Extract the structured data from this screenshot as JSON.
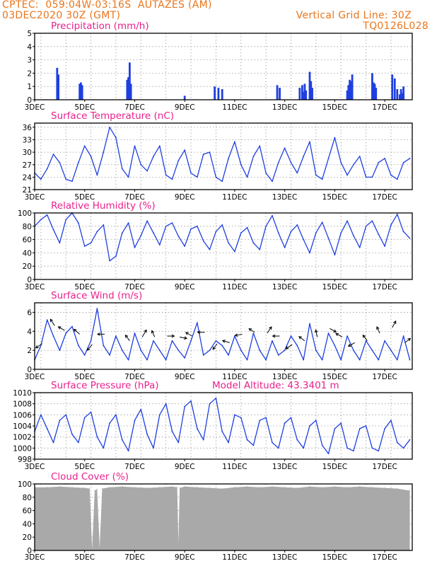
{
  "header": {
    "line1": "CPTEC:  059:04W-03:16S  AUTAZES (AM)",
    "line2": "03DEC2020 30Z (GMT)",
    "grid_note": "Vertical Grid Line: 30Z",
    "code": "TQ0126L028"
  },
  "colors": {
    "header": "#e8761e",
    "title": "#e8218c",
    "series": "#1f3fe0",
    "cloud": "#a9a9a9",
    "grid": "#9a9a9a"
  },
  "x_axis": {
    "ticks": [
      {
        "day": 3,
        "label": "3DEC"
      },
      {
        "day": 5,
        "label": "5DEC"
      },
      {
        "day": 7,
        "label": "7DEC"
      },
      {
        "day": 9,
        "label": "9DEC"
      },
      {
        "day": 11,
        "label": "11DEC"
      },
      {
        "day": 13,
        "label": "13DEC"
      },
      {
        "day": 15,
        "label": "15DEC"
      },
      {
        "day": 17,
        "label": "17DEC"
      }
    ],
    "range": [
      3,
      18.1
    ],
    "grid_lines_day": [
      3.25,
      4.25,
      5.25,
      6.25,
      7.25,
      8.25,
      9.25,
      10.25,
      11.25,
      12.25,
      13.25,
      14.25,
      15.25,
      16.25,
      17.25
    ]
  },
  "chart_data": [
    {
      "type": "bar",
      "title": "Precipitation (mm/h)",
      "ylim": [
        0,
        5
      ],
      "yticks": [
        0,
        1,
        2,
        3,
        4,
        5
      ],
      "x": [
        3.9,
        3.95,
        4.8,
        4.85,
        4.9,
        6.7,
        6.75,
        6.8,
        6.85,
        9.0,
        10.2,
        10.35,
        10.5,
        12.7,
        12.8,
        13.6,
        13.7,
        13.75,
        13.8,
        13.85,
        14.0,
        14.05,
        14.1,
        15.5,
        15.55,
        15.6,
        15.65,
        15.7,
        16.5,
        16.55,
        16.6,
        16.65,
        17.3,
        17.4,
        17.5,
        17.6,
        17.65,
        17.7,
        17.75
      ],
      "values": [
        2.4,
        1.9,
        1.2,
        1.3,
        1.1,
        1.5,
        1.7,
        2.8,
        1.2,
        0.3,
        1.0,
        0.9,
        0.8,
        1.1,
        0.9,
        0.9,
        1.1,
        0.6,
        1.2,
        0.7,
        2.1,
        1.4,
        0.9,
        0.7,
        1.1,
        1.5,
        1.4,
        1.9,
        2.0,
        1.3,
        1.2,
        0.9,
        1.9,
        1.6,
        0.8,
        0.4,
        0.8,
        0.5,
        1.0
      ]
    },
    {
      "type": "line",
      "title": "Surface Temperature (nC)",
      "ylim": [
        21,
        37
      ],
      "yticks": [
        21,
        24,
        27,
        30,
        33,
        36
      ],
      "x": [
        3,
        3.25,
        3.5,
        3.75,
        4,
        4.25,
        4.5,
        4.75,
        5,
        5.25,
        5.5,
        5.75,
        6,
        6.25,
        6.5,
        6.75,
        7,
        7.25,
        7.5,
        7.75,
        8,
        8.25,
        8.5,
        8.75,
        9,
        9.25,
        9.5,
        9.75,
        10,
        10.25,
        10.5,
        10.75,
        11,
        11.25,
        11.5,
        11.75,
        12,
        12.25,
        12.5,
        12.75,
        13,
        13.25,
        13.5,
        13.75,
        14,
        14.25,
        14.5,
        14.75,
        15,
        15.25,
        15.5,
        15.75,
        16,
        16.25,
        16.5,
        16.75,
        17,
        17.25,
        17.5,
        17.75,
        18
      ],
      "values": [
        25,
        23.5,
        26,
        29.5,
        27.5,
        23.5,
        23,
        27.5,
        31.5,
        29,
        24.5,
        30,
        36,
        33.5,
        26,
        24,
        31.5,
        27,
        25.5,
        29,
        31.5,
        24.5,
        23.5,
        28,
        30.5,
        25,
        24,
        29.5,
        30,
        24,
        23,
        28.5,
        32.5,
        27,
        24,
        29,
        31.5,
        25,
        23,
        27.5,
        31,
        27.5,
        25,
        29,
        32.5,
        24.5,
        23.5,
        28.5,
        33.5,
        27.5,
        24.5,
        27,
        29,
        24,
        24,
        27.5,
        28.5,
        24.5,
        23.5,
        27.5,
        28.5
      ]
    },
    {
      "type": "line",
      "title": "Relative Humidity (%)",
      "ylim": [
        0,
        100
      ],
      "yticks": [
        0,
        20,
        40,
        60,
        80,
        100
      ],
      "x": [
        3,
        3.25,
        3.5,
        3.75,
        4,
        4.25,
        4.5,
        4.75,
        5,
        5.25,
        5.5,
        5.75,
        6,
        6.25,
        6.5,
        6.75,
        7,
        7.25,
        7.5,
        7.75,
        8,
        8.25,
        8.5,
        8.75,
        9,
        9.25,
        9.5,
        9.75,
        10,
        10.25,
        10.5,
        10.75,
        11,
        11.25,
        11.5,
        11.75,
        12,
        12.25,
        12.5,
        12.75,
        13,
        13.25,
        13.5,
        13.75,
        14,
        14.25,
        14.5,
        14.75,
        15,
        15.25,
        15.5,
        15.75,
        16,
        16.25,
        16.5,
        16.75,
        17,
        17.25,
        17.5,
        17.75,
        18
      ],
      "values": [
        80,
        90,
        97,
        75,
        55,
        90,
        100,
        85,
        50,
        55,
        72,
        82,
        28,
        35,
        70,
        85,
        48,
        66,
        88,
        70,
        52,
        80,
        85,
        65,
        50,
        76,
        80,
        58,
        45,
        72,
        82,
        55,
        42,
        70,
        78,
        55,
        45,
        80,
        96,
        70,
        48,
        72,
        82,
        60,
        40,
        70,
        86,
        62,
        37,
        70,
        88,
        66,
        48,
        80,
        88,
        68,
        50,
        82,
        98,
        72,
        62
      ]
    },
    {
      "type": "line",
      "title": "Surface Wind (m/s)",
      "ylim": [
        0,
        7
      ],
      "yticks": [
        0,
        2,
        4,
        6
      ],
      "x": [
        3,
        3.25,
        3.5,
        3.75,
        4,
        4.25,
        4.5,
        4.75,
        5,
        5.25,
        5.5,
        5.75,
        6,
        6.25,
        6.5,
        6.75,
        7,
        7.25,
        7.5,
        7.75,
        8,
        8.25,
        8.5,
        8.75,
        9,
        9.25,
        9.5,
        9.75,
        10,
        10.25,
        10.5,
        10.75,
        11,
        11.25,
        11.5,
        11.75,
        12,
        12.25,
        12.5,
        12.75,
        13,
        13.25,
        13.5,
        13.75,
        14,
        14.25,
        14.5,
        14.75,
        15,
        15.25,
        15.5,
        15.75,
        16,
        16.25,
        16.5,
        16.75,
        17,
        17.25,
        17.5,
        17.75,
        18
      ],
      "values": [
        1,
        2.5,
        5.2,
        3.5,
        2,
        3.8,
        4.5,
        2.5,
        1.5,
        3,
        6.4,
        2.5,
        1.5,
        3.5,
        2,
        1,
        3.8,
        2,
        1,
        3,
        2,
        1,
        3,
        2,
        1.2,
        3,
        4.9,
        1.5,
        2,
        3,
        2.5,
        1.5,
        3.5,
        2,
        1,
        3.8,
        2,
        1,
        3,
        1.5,
        2,
        3.5,
        2.5,
        1,
        4.8,
        2,
        1,
        3.8,
        2.5,
        1,
        3.5,
        2,
        1,
        3,
        2,
        1,
        3,
        2,
        1,
        3.5,
        1
      ]
    },
    {
      "type": "line",
      "title": "Surface Pressure (hPa)",
      "annotation": "Model Altitude: 43.3401 m",
      "ylim": [
        998,
        1010
      ],
      "yticks": [
        998,
        1000,
        1002,
        1004,
        1006,
        1008,
        1010
      ],
      "x": [
        3,
        3.25,
        3.5,
        3.75,
        4,
        4.25,
        4.5,
        4.75,
        5,
        5.25,
        5.5,
        5.75,
        6,
        6.25,
        6.5,
        6.75,
        7,
        7.25,
        7.5,
        7.75,
        8,
        8.25,
        8.5,
        8.75,
        9,
        9.25,
        9.5,
        9.75,
        10,
        10.25,
        10.5,
        10.75,
        11,
        11.25,
        11.5,
        11.75,
        12,
        12.25,
        12.5,
        12.75,
        13,
        13.25,
        13.5,
        13.75,
        14,
        14.25,
        14.5,
        14.75,
        15,
        15.25,
        15.5,
        15.75,
        16,
        16.25,
        16.5,
        16.75,
        17,
        17.25,
        17.5,
        17.75,
        18
      ],
      "values": [
        1003,
        1006,
        1003.5,
        1001,
        1005,
        1006,
        1002.5,
        1001,
        1005.5,
        1006.5,
        1002,
        1000,
        1004.5,
        1006,
        1001.5,
        999.5,
        1005,
        1007,
        1002.5,
        1000,
        1006,
        1008,
        1003,
        1001,
        1007.5,
        1008.5,
        1003.5,
        1001.5,
        1008,
        1009,
        1003,
        1001,
        1006,
        1005.5,
        1001.5,
        1000.5,
        1005,
        1005.5,
        1001,
        1000,
        1004.5,
        1005.5,
        1001.5,
        1000,
        1004,
        1005,
        1000.5,
        999,
        1003.5,
        1004.5,
        1000,
        999.5,
        1003.5,
        1004,
        1000,
        999.5,
        1003.5,
        1005,
        1001,
        1000,
        1001.5
      ]
    },
    {
      "type": "area",
      "title": "Cloud Cover (%)",
      "ylim": [
        0,
        100
      ],
      "yticks": [
        0,
        20,
        40,
        60,
        80,
        100
      ],
      "x": [
        3,
        3.5,
        4,
        4.5,
        5,
        5.2,
        5.3,
        5.4,
        5.5,
        5.6,
        5.7,
        6,
        6.5,
        7,
        7.5,
        8,
        8.5,
        8.7,
        8.75,
        8.8,
        9,
        9.5,
        10,
        10.5,
        11,
        11.5,
        12,
        12.5,
        13,
        13.5,
        14,
        14.5,
        15,
        15.5,
        16,
        16.5,
        17,
        17.5,
        18
      ],
      "values": [
        95,
        95,
        96,
        95,
        94,
        93,
        2,
        90,
        92,
        4,
        93,
        95,
        96,
        95,
        94,
        95,
        96,
        95,
        10,
        94,
        96,
        95,
        94,
        93,
        95,
        96,
        95,
        96,
        95,
        94,
        96,
        95,
        96,
        95,
        96,
        95,
        94,
        93,
        90
      ]
    }
  ],
  "wind_arrows": [
    {
      "day": 3.3,
      "value": 2.7,
      "dx": -9,
      "dy": 6
    },
    {
      "day": 3.8,
      "value": 4.6,
      "dx": -6,
      "dy": -9
    },
    {
      "day": 4.2,
      "value": 4.1,
      "dx": -9,
      "dy": -5
    },
    {
      "day": 4.8,
      "value": 3.7,
      "dx": -8,
      "dy": -7
    },
    {
      "day": 5.3,
      "value": 2.6,
      "dx": -7,
      "dy": 8
    },
    {
      "day": 5.8,
      "value": 3.7,
      "dx": -10,
      "dy": 0
    },
    {
      "day": 6.8,
      "value": 3.0,
      "dx": -6,
      "dy": -8
    },
    {
      "day": 7.3,
      "value": 3.4,
      "dx": 6,
      "dy": -10
    },
    {
      "day": 7.8,
      "value": 3.4,
      "dx": -4,
      "dy": -9
    },
    {
      "day": 8.3,
      "value": 3.5,
      "dx": 10,
      "dy": 0
    },
    {
      "day": 8.8,
      "value": 3.4,
      "dx": 10,
      "dy": 2
    },
    {
      "day": 9.3,
      "value": 3.5,
      "dx": -9,
      "dy": -5
    },
    {
      "day": 9.8,
      "value": 3.9,
      "dx": -10,
      "dy": 0
    },
    {
      "day": 10.3,
      "value": 2.7,
      "dx": -6,
      "dy": 8
    },
    {
      "day": 10.8,
      "value": 2.8,
      "dx": -10,
      "dy": -3
    },
    {
      "day": 11.3,
      "value": 3.7,
      "dx": -10,
      "dy": 2
    },
    {
      "day": 11.8,
      "value": 3.9,
      "dx": -8,
      "dy": -5
    },
    {
      "day": 12.3,
      "value": 3.8,
      "dx": 6,
      "dy": -9
    },
    {
      "day": 12.8,
      "value": 3.5,
      "dx": -10,
      "dy": 0
    },
    {
      "day": 13.3,
      "value": 2.6,
      "dx": -9,
      "dy": 6
    },
    {
      "day": 13.8,
      "value": 3.0,
      "dx": -8,
      "dy": -6
    },
    {
      "day": 14.3,
      "value": 3.4,
      "dx": -2,
      "dy": -10
    },
    {
      "day": 14.8,
      "value": 4.3,
      "dx": 9,
      "dy": 5
    },
    {
      "day": 15.3,
      "value": 3.4,
      "dx": -9,
      "dy": -5
    },
    {
      "day": 15.8,
      "value": 2.8,
      "dx": -9,
      "dy": 5
    },
    {
      "day": 16.3,
      "value": 3.0,
      "dx": -6,
      "dy": -8
    },
    {
      "day": 16.8,
      "value": 3.8,
      "dx": -4,
      "dy": -9
    },
    {
      "day": 17.3,
      "value": 4.4,
      "dx": 5,
      "dy": -9
    },
    {
      "day": 17.8,
      "value": 2.8,
      "dx": 8,
      "dy": -6
    }
  ]
}
